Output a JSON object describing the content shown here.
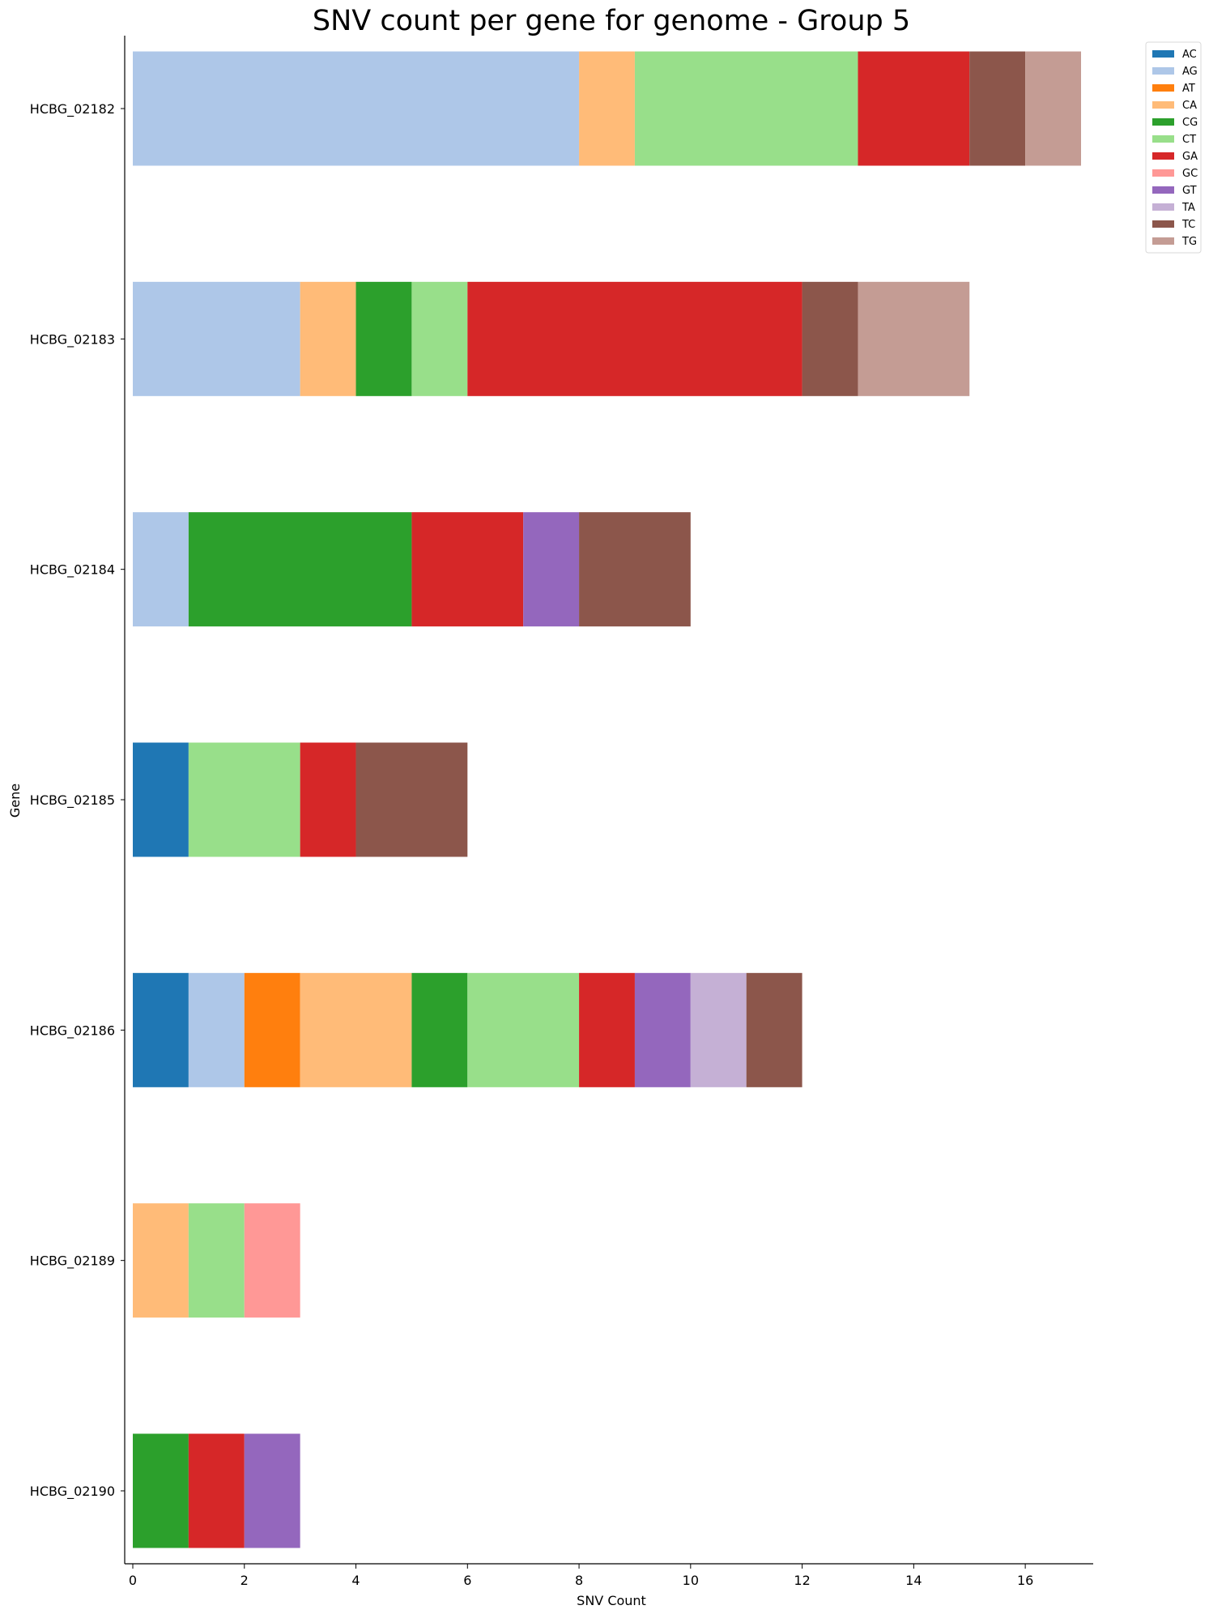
{
  "chart_data": {
    "type": "bar",
    "orientation": "horizontal",
    "stacked": true,
    "title": "SNV count per gene for genome - Group 5",
    "xlabel": "SNV Count",
    "ylabel": "Gene",
    "xlim": [
      0,
      17.2
    ],
    "xticks": [
      0,
      2,
      4,
      6,
      8,
      10,
      12,
      14,
      16
    ],
    "grid": false,
    "legend_position": "top-right, outside plot",
    "categories": [
      "HCBG_02182",
      "HCBG_02183",
      "HCBG_02184",
      "HCBG_02185",
      "HCBG_02186",
      "HCBG_02189",
      "HCBG_02190"
    ],
    "series": [
      {
        "name": "AC",
        "color": "#1f77b4",
        "values": [
          0,
          0,
          0,
          1,
          1,
          0,
          0
        ]
      },
      {
        "name": "AG",
        "color": "#aec7e8",
        "values": [
          8,
          3,
          1,
          0,
          1,
          0,
          0
        ]
      },
      {
        "name": "AT",
        "color": "#ff7f0e",
        "values": [
          0,
          0,
          0,
          0,
          1,
          0,
          0
        ]
      },
      {
        "name": "CA",
        "color": "#ffbb78",
        "values": [
          1,
          1,
          0,
          0,
          2,
          1,
          0
        ]
      },
      {
        "name": "CG",
        "color": "#2ca02c",
        "values": [
          0,
          1,
          4,
          0,
          1,
          0,
          1
        ]
      },
      {
        "name": "CT",
        "color": "#98df8a",
        "values": [
          4,
          1,
          0,
          2,
          2,
          1,
          0
        ]
      },
      {
        "name": "GA",
        "color": "#d62728",
        "values": [
          2,
          6,
          2,
          1,
          1,
          0,
          1
        ]
      },
      {
        "name": "GC",
        "color": "#ff9896",
        "values": [
          0,
          0,
          0,
          0,
          0,
          1,
          0
        ]
      },
      {
        "name": "GT",
        "color": "#9467bd",
        "values": [
          0,
          0,
          1,
          0,
          1,
          0,
          1
        ]
      },
      {
        "name": "TA",
        "color": "#c5b0d5",
        "values": [
          0,
          0,
          0,
          0,
          1,
          0,
          0
        ]
      },
      {
        "name": "TC",
        "color": "#8c564b",
        "values": [
          1,
          1,
          2,
          2,
          1,
          0,
          0
        ]
      },
      {
        "name": "TG",
        "color": "#c49c94",
        "values": [
          1,
          2,
          0,
          0,
          0,
          0,
          0
        ]
      }
    ]
  }
}
